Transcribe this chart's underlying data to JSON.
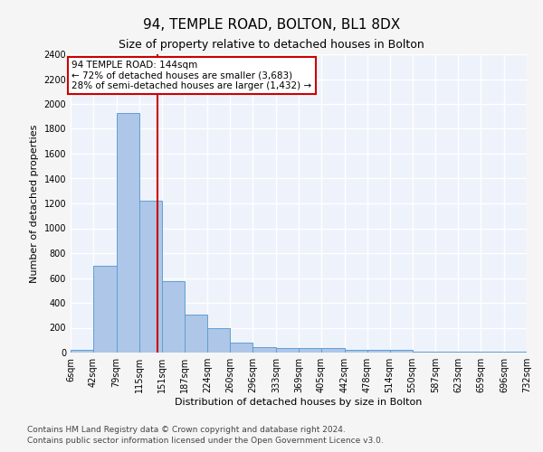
{
  "title": "94, TEMPLE ROAD, BOLTON, BL1 8DX",
  "subtitle": "Size of property relative to detached houses in Bolton",
  "xlabel": "Distribution of detached houses by size in Bolton",
  "ylabel": "Number of detached properties",
  "bar_values": [
    20,
    700,
    1930,
    1220,
    575,
    305,
    200,
    80,
    45,
    35,
    35,
    35,
    20,
    20,
    20,
    5,
    5,
    5,
    5,
    5
  ],
  "bin_edges": [
    6,
    42,
    79,
    115,
    151,
    187,
    224,
    260,
    296,
    333,
    369,
    405,
    442,
    478,
    514,
    550,
    587,
    623,
    659,
    696,
    732
  ],
  "tick_labels": [
    "6sqm",
    "42sqm",
    "79sqm",
    "115sqm",
    "151sqm",
    "187sqm",
    "224sqm",
    "260sqm",
    "296sqm",
    "333sqm",
    "369sqm",
    "405sqm",
    "442sqm",
    "478sqm",
    "514sqm",
    "550sqm",
    "587sqm",
    "623sqm",
    "659sqm",
    "696sqm",
    "732sqm"
  ],
  "bar_color": "#aec6e8",
  "bar_edge_color": "#5f9fd4",
  "vline_x": 144,
  "vline_color": "#cc0000",
  "ylim": [
    0,
    2400
  ],
  "yticks": [
    0,
    200,
    400,
    600,
    800,
    1000,
    1200,
    1400,
    1600,
    1800,
    2000,
    2200,
    2400
  ],
  "annotation_text_line1": "94 TEMPLE ROAD: 144sqm",
  "annotation_text_line2": "← 72% of detached houses are smaller (3,683)",
  "annotation_text_line3": "28% of semi-detached houses are larger (1,432) →",
  "annotation_box_color": "#ffffff",
  "annotation_box_edge": "#cc0000",
  "footer_line1": "Contains HM Land Registry data © Crown copyright and database right 2024.",
  "footer_line2": "Contains public sector information licensed under the Open Government Licence v3.0.",
  "bg_color": "#eef2fb",
  "fig_bg_color": "#f5f5f5",
  "grid_color": "#ffffff",
  "title_fontsize": 11,
  "subtitle_fontsize": 9,
  "axis_label_fontsize": 8,
  "tick_fontsize": 7,
  "annotation_fontsize": 7.5,
  "footer_fontsize": 6.5
}
